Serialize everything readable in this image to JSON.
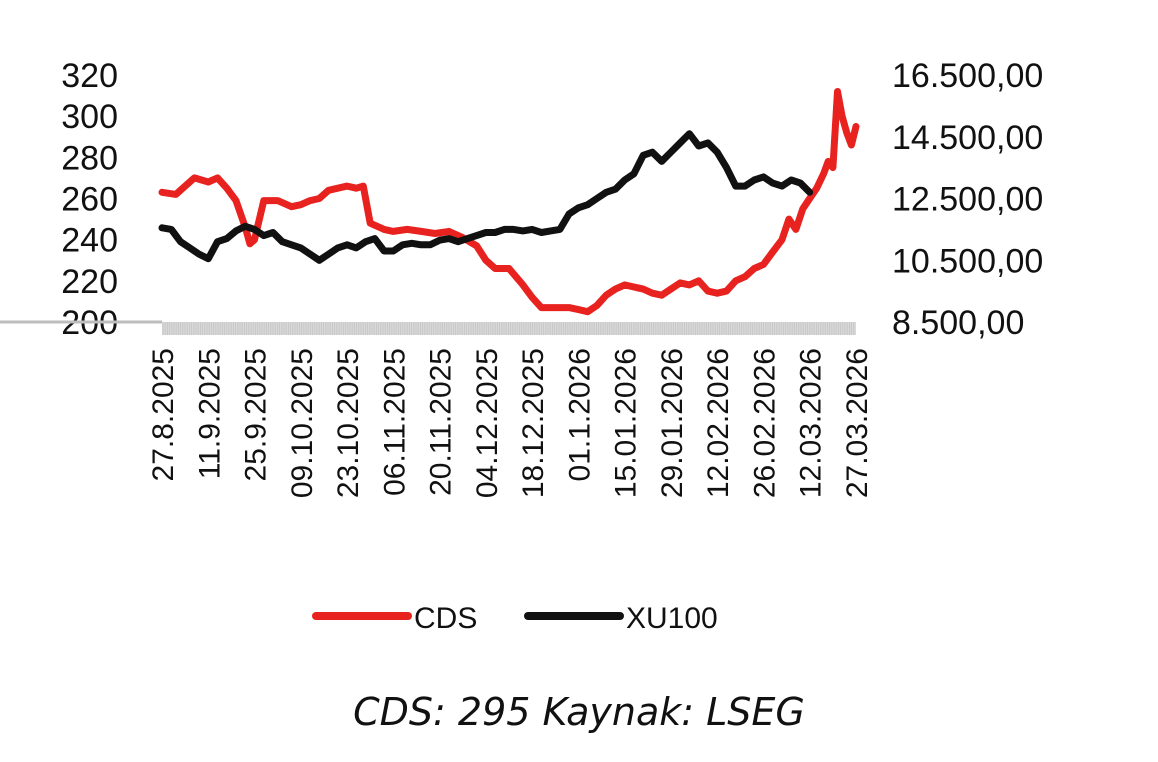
{
  "chart_data": {
    "type": "line",
    "x_ticks": [
      "27.8.2025",
      "11.9.2025",
      "25.9.2025",
      "09.10.2025",
      "23.10.2025",
      "06.11.2025",
      "20.11.2025",
      "04.12.2025",
      "18.12.2025",
      "01.1.2026",
      "15.01.2026",
      "29.01.2026",
      "12.02.2026",
      "26.02.2026",
      "12.03.2026",
      "27.03.2026"
    ],
    "y_left": {
      "min": 200,
      "max": 320,
      "ticks": [
        "320",
        "300",
        "280",
        "260",
        "240",
        "220",
        "200"
      ]
    },
    "y_right": {
      "min": 8500,
      "max": 16500,
      "ticks": [
        "16.500,00",
        "14.500,00",
        "12.500,00",
        "10.500,00",
        "8.500,00"
      ]
    },
    "series": [
      {
        "name": "CDS",
        "axis": "left",
        "color": "#e8231f",
        "points": [
          [
            0,
            263
          ],
          [
            0.3,
            262
          ],
          [
            0.5,
            266
          ],
          [
            0.7,
            270
          ],
          [
            1.0,
            268
          ],
          [
            1.2,
            270
          ],
          [
            1.4,
            265
          ],
          [
            1.6,
            259
          ],
          [
            1.8,
            246
          ],
          [
            1.9,
            238
          ],
          [
            2.0,
            240
          ],
          [
            2.2,
            259
          ],
          [
            2.5,
            259
          ],
          [
            2.8,
            256
          ],
          [
            3.0,
            257
          ],
          [
            3.2,
            259
          ],
          [
            3.4,
            260
          ],
          [
            3.6,
            264
          ],
          [
            3.8,
            265
          ],
          [
            4.0,
            266
          ],
          [
            4.2,
            265
          ],
          [
            4.35,
            266
          ],
          [
            4.5,
            248
          ],
          [
            4.8,
            245
          ],
          [
            5.0,
            244
          ],
          [
            5.3,
            245
          ],
          [
            5.6,
            244
          ],
          [
            5.9,
            243
          ],
          [
            6.2,
            244
          ],
          [
            6.5,
            241
          ],
          [
            6.8,
            237
          ],
          [
            7.0,
            230
          ],
          [
            7.2,
            226
          ],
          [
            7.5,
            226
          ],
          [
            7.8,
            218
          ],
          [
            8.0,
            212
          ],
          [
            8.2,
            207
          ],
          [
            8.5,
            207
          ],
          [
            8.8,
            207
          ],
          [
            9.0,
            206
          ],
          [
            9.2,
            205
          ],
          [
            9.4,
            208
          ],
          [
            9.6,
            213
          ],
          [
            9.8,
            216
          ],
          [
            10.0,
            218
          ],
          [
            10.2,
            217
          ],
          [
            10.4,
            216
          ],
          [
            10.6,
            214
          ],
          [
            10.8,
            213
          ],
          [
            11.0,
            216
          ],
          [
            11.2,
            219
          ],
          [
            11.4,
            218
          ],
          [
            11.6,
            220
          ],
          [
            11.8,
            215
          ],
          [
            12.0,
            214
          ],
          [
            12.2,
            215
          ],
          [
            12.4,
            220
          ],
          [
            12.6,
            222
          ],
          [
            12.8,
            226
          ],
          [
            13.0,
            228
          ],
          [
            13.2,
            234
          ],
          [
            13.4,
            240
          ],
          [
            13.55,
            250
          ],
          [
            13.7,
            245
          ],
          [
            13.85,
            255
          ],
          [
            14.0,
            260
          ],
          [
            14.15,
            265
          ],
          [
            14.3,
            272
          ],
          [
            14.4,
            278
          ],
          [
            14.5,
            275
          ],
          [
            14.6,
            312
          ],
          [
            14.7,
            300
          ],
          [
            14.8,
            292
          ],
          [
            14.9,
            286
          ],
          [
            15.0,
            295
          ]
        ]
      },
      {
        "name": "XU100",
        "axis": "right",
        "color": "#111111",
        "points": [
          [
            0,
            11550
          ],
          [
            0.2,
            11500
          ],
          [
            0.4,
            11100
          ],
          [
            0.6,
            10900
          ],
          [
            0.8,
            10700
          ],
          [
            1.0,
            10550
          ],
          [
            1.2,
            11100
          ],
          [
            1.4,
            11200
          ],
          [
            1.6,
            11450
          ],
          [
            1.8,
            11600
          ],
          [
            2.0,
            11500
          ],
          [
            2.2,
            11300
          ],
          [
            2.4,
            11400
          ],
          [
            2.6,
            11100
          ],
          [
            2.8,
            11000
          ],
          [
            3.0,
            10900
          ],
          [
            3.2,
            10700
          ],
          [
            3.4,
            10500
          ],
          [
            3.6,
            10700
          ],
          [
            3.8,
            10900
          ],
          [
            4.0,
            11000
          ],
          [
            4.2,
            10900
          ],
          [
            4.4,
            11100
          ],
          [
            4.6,
            11200
          ],
          [
            4.8,
            10800
          ],
          [
            5.0,
            10800
          ],
          [
            5.2,
            11000
          ],
          [
            5.4,
            11050
          ],
          [
            5.6,
            11000
          ],
          [
            5.8,
            11000
          ],
          [
            6.0,
            11150
          ],
          [
            6.2,
            11200
          ],
          [
            6.4,
            11100
          ],
          [
            6.6,
            11200
          ],
          [
            6.8,
            11300
          ],
          [
            7.0,
            11400
          ],
          [
            7.2,
            11400
          ],
          [
            7.4,
            11500
          ],
          [
            7.6,
            11500
          ],
          [
            7.8,
            11450
          ],
          [
            8.0,
            11500
          ],
          [
            8.2,
            11400
          ],
          [
            8.4,
            11450
          ],
          [
            8.6,
            11500
          ],
          [
            8.8,
            12000
          ],
          [
            9.0,
            12200
          ],
          [
            9.2,
            12300
          ],
          [
            9.4,
            12500
          ],
          [
            9.6,
            12700
          ],
          [
            9.8,
            12800
          ],
          [
            10.0,
            13100
          ],
          [
            10.2,
            13300
          ],
          [
            10.4,
            13900
          ],
          [
            10.6,
            14000
          ],
          [
            10.8,
            13700
          ],
          [
            11.0,
            14000
          ],
          [
            11.2,
            14300
          ],
          [
            11.4,
            14600
          ],
          [
            11.6,
            14200
          ],
          [
            11.8,
            14300
          ],
          [
            12.0,
            14000
          ],
          [
            12.2,
            13500
          ],
          [
            12.4,
            12900
          ],
          [
            12.6,
            12900
          ],
          [
            12.8,
            13100
          ],
          [
            13.0,
            13200
          ],
          [
            13.2,
            13000
          ],
          [
            13.4,
            12900
          ],
          [
            13.6,
            13100
          ],
          [
            13.8,
            13000
          ],
          [
            14.0,
            12700
          ]
        ]
      }
    ],
    "legend": {
      "placement": "bottom"
    }
  },
  "footer": {
    "text": "CDS: 295 Kaynak: LSEG"
  }
}
